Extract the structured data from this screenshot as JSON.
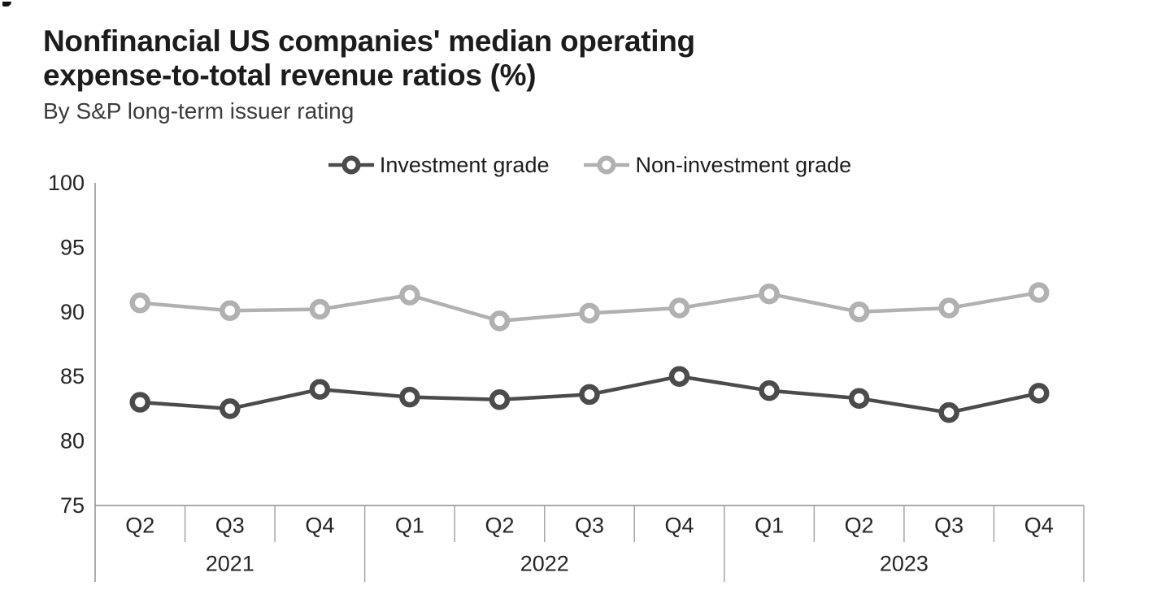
{
  "title": "Nonfinancial US companies' median operating\nexpense-to-total revenue ratios (%)",
  "subtitle": "By S&P long-term issuer rating",
  "colors": {
    "investment_grade": "#4b4b4b",
    "non_investment_grade": "#b1b1b1",
    "axis_line": "#8f8f8f",
    "tick_line": "#a6a6a6",
    "axis_text": "#262626",
    "title_text": "#1c1c1c"
  },
  "chart_data": {
    "type": "line",
    "title": "Nonfinancial US companies' median operating expense-to-total revenue ratios (%)",
    "subtitle": "By S&P long-term issuer rating",
    "categories": [
      "Q2",
      "Q3",
      "Q4",
      "Q1",
      "Q2",
      "Q3",
      "Q4",
      "Q1",
      "Q2",
      "Q3",
      "Q4"
    ],
    "year_groups": [
      {
        "label": "2021",
        "span": 3
      },
      {
        "label": "2022",
        "span": 4
      },
      {
        "label": "2023",
        "span": 4
      }
    ],
    "series": [
      {
        "name": "Investment grade",
        "color": "#4b4b4b",
        "values": [
          83.0,
          82.5,
          84.0,
          83.4,
          83.2,
          83.6,
          85.0,
          83.9,
          83.3,
          82.2,
          83.7
        ]
      },
      {
        "name": "Non-investment grade",
        "color": "#b1b1b1",
        "values": [
          90.7,
          90.1,
          90.2,
          91.3,
          89.3,
          89.9,
          90.3,
          91.4,
          90.0,
          90.3,
          91.5
        ]
      }
    ],
    "xlabel": "",
    "ylabel": "",
    "ylim": [
      75,
      100
    ],
    "yticks": [
      100,
      95,
      90,
      85,
      80,
      75
    ],
    "grid": false,
    "legend_position": "top-center",
    "marker": "open-circle"
  }
}
